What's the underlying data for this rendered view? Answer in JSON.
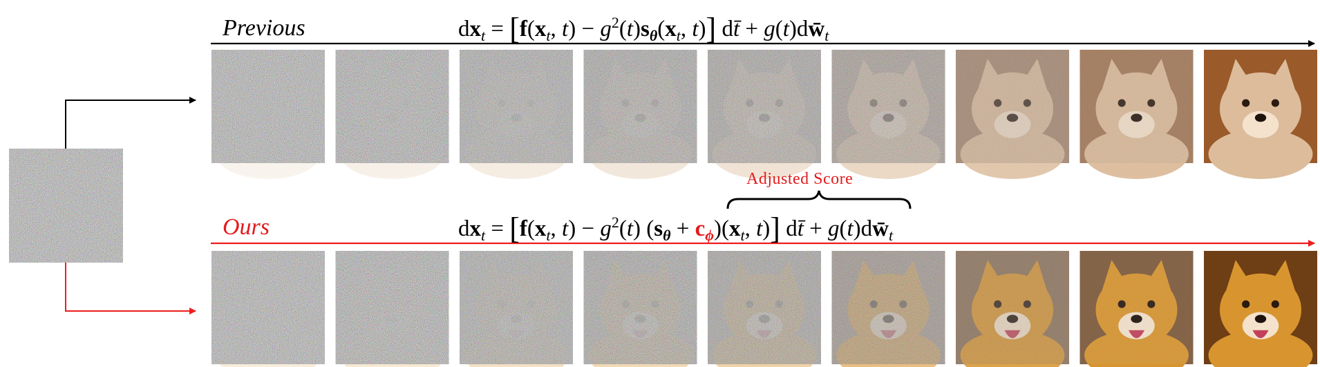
{
  "labels": {
    "previous": "Previous",
    "ours": "Ours",
    "adjusted_score": "Adjusted Score"
  },
  "colors": {
    "previous_path": "#000000",
    "ours_path": "#ee1c1c",
    "ours_label": "#e41a1c"
  },
  "frames_per_row": 9,
  "rows": [
    {
      "name": "previous",
      "clarity": [
        0.02,
        0.06,
        0.13,
        0.2,
        0.27,
        0.42,
        0.68,
        0.8,
        1.0
      ],
      "fur_color": "#dcbc9b",
      "bg_color": "#9a5a2a"
    },
    {
      "name": "ours",
      "clarity": [
        0.02,
        0.06,
        0.13,
        0.2,
        0.27,
        0.45,
        0.72,
        0.85,
        1.0
      ],
      "fur_color": "#d8952f",
      "bg_color": "#6e3e14"
    }
  ]
}
